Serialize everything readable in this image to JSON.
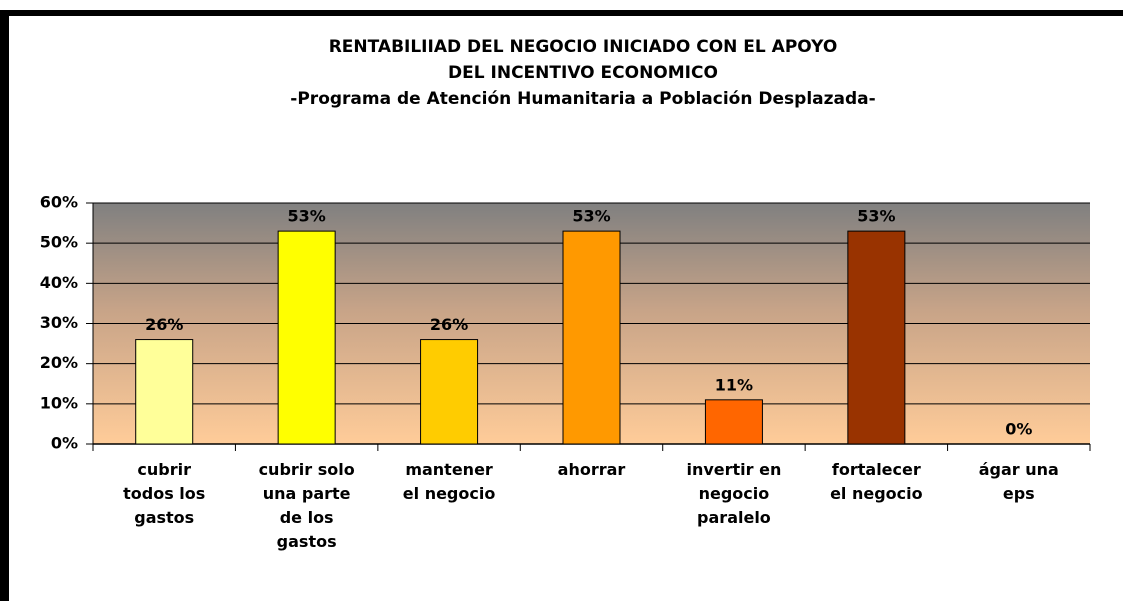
{
  "chart_data": {
    "type": "bar",
    "title": "RENTABILIIAD DEL NEGOCIO INICIADO CON EL APOYO\nDEL INCENTIVO ECONOMICO",
    "subtitle": "-Programa de Atención Humanitaria a Población Desplazada-",
    "categories": [
      "cubrir\ntodos los\ngastos",
      "cubrir solo\nuna parte\nde los\ngastos",
      "mantener\nel negocio",
      "ahorrar",
      "invertir en\nnegocio\nparalelo",
      "fortalecer\nel negocio",
      "ágar una\neps"
    ],
    "values": [
      26,
      53,
      26,
      53,
      11,
      53,
      0
    ],
    "value_labels": [
      "26%",
      "53%",
      "26%",
      "53%",
      "11%",
      "53%",
      "0%"
    ],
    "colors": [
      "#ffff99",
      "#ffff00",
      "#ffcc00",
      "#ff9900",
      "#ff6600",
      "#993300",
      "#ff9933"
    ],
    "ylim": [
      0,
      60
    ],
    "yticks": [
      {
        "value": 0,
        "label": "0%"
      },
      {
        "value": 10,
        "label": "10%"
      },
      {
        "value": 20,
        "label": "20%"
      },
      {
        "value": 30,
        "label": "30%"
      },
      {
        "value": 40,
        "label": "40%"
      },
      {
        "value": 50,
        "label": "50%"
      },
      {
        "value": 60,
        "label": "60%"
      }
    ],
    "grid": true
  }
}
